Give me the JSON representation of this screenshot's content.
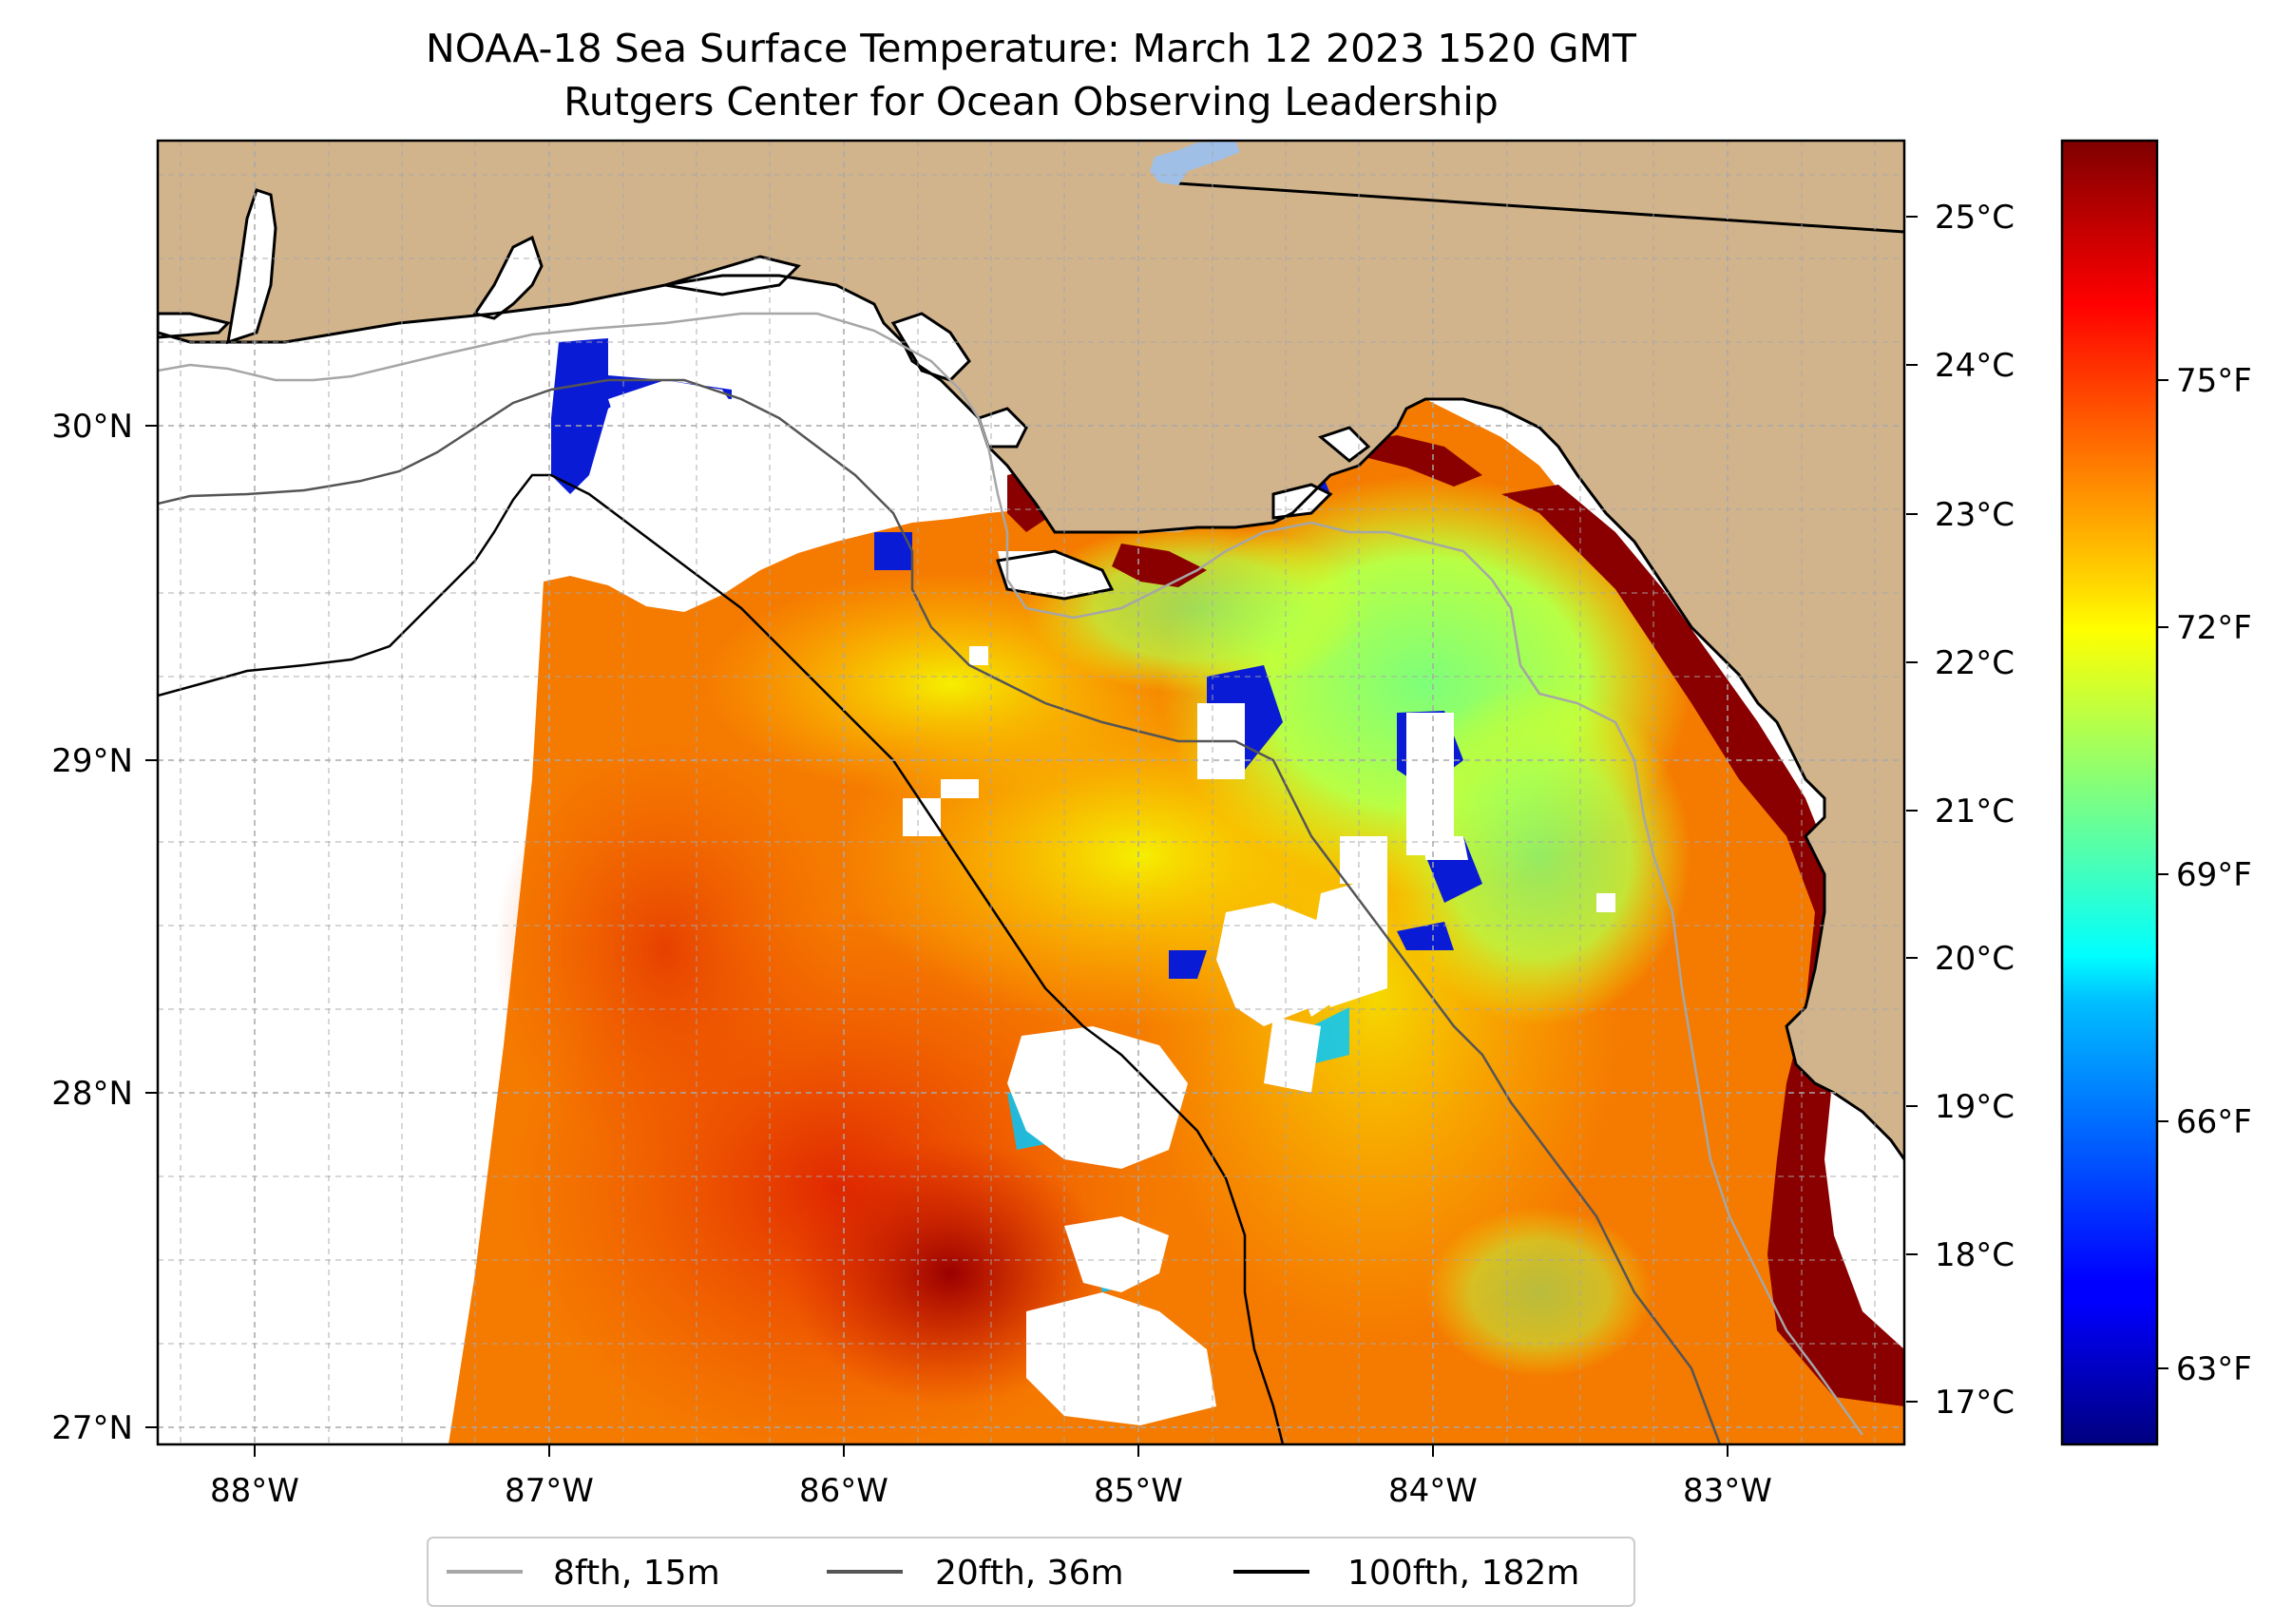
{
  "title_line1": "NOAA-18 Sea Surface Temperature: March 12 2023 1520 GMT",
  "title_line2": "Rutgers Center for Ocean Observing Leadership",
  "colors": {
    "land": "#d2b48c",
    "grid": "#b0b0b0",
    "isobath_8": "#a6a6a6",
    "isobath_20": "#555555",
    "isobath_100": "#000000"
  },
  "chart_data": {
    "type": "heatmap",
    "title": "NOAA-18 Sea Surface Temperature: March 12 2023 1520 GMT",
    "subtitle": "Rutgers Center for Ocean Observing Leadership",
    "lon_range": [
      -88.3,
      -82.35
    ],
    "lat_range": [
      26.95,
      30.85
    ],
    "x_ticks": [
      "88°W",
      "87°W",
      "86°W",
      "85°W",
      "84°W",
      "83°W"
    ],
    "x_tick_values": [
      -88,
      -87,
      -86,
      -85,
      -84,
      -83
    ],
    "y_ticks": [
      "27°N",
      "28°N",
      "29°N",
      "30°N"
    ],
    "y_tick_values": [
      27,
      28,
      29,
      30
    ],
    "colorbar": {
      "colormap": "jet",
      "range_c": [
        16.6,
        25.5
      ],
      "celsius_ticks": [
        "17°C",
        "18°C",
        "19°C",
        "20°C",
        "21°C",
        "22°C",
        "23°C",
        "24°C",
        "25°C"
      ],
      "celsius_tick_values": [
        17,
        18,
        19,
        20,
        21,
        22,
        23,
        24,
        25
      ],
      "fahrenheit_ticks": [
        "63°F",
        "66°F",
        "69°F",
        "72°F",
        "75°F"
      ],
      "fahrenheit_tick_values": [
        63,
        66,
        69,
        72,
        75
      ]
    },
    "legend": {
      "placement": "bottom-center",
      "entries": [
        {
          "label": "8fth, 15m",
          "color": "#a6a6a6"
        },
        {
          "label": "20fth, 36m",
          "color": "#555555"
        },
        {
          "label": "100fth, 182m",
          "color": "#000000"
        }
      ]
    },
    "grid": true
  }
}
